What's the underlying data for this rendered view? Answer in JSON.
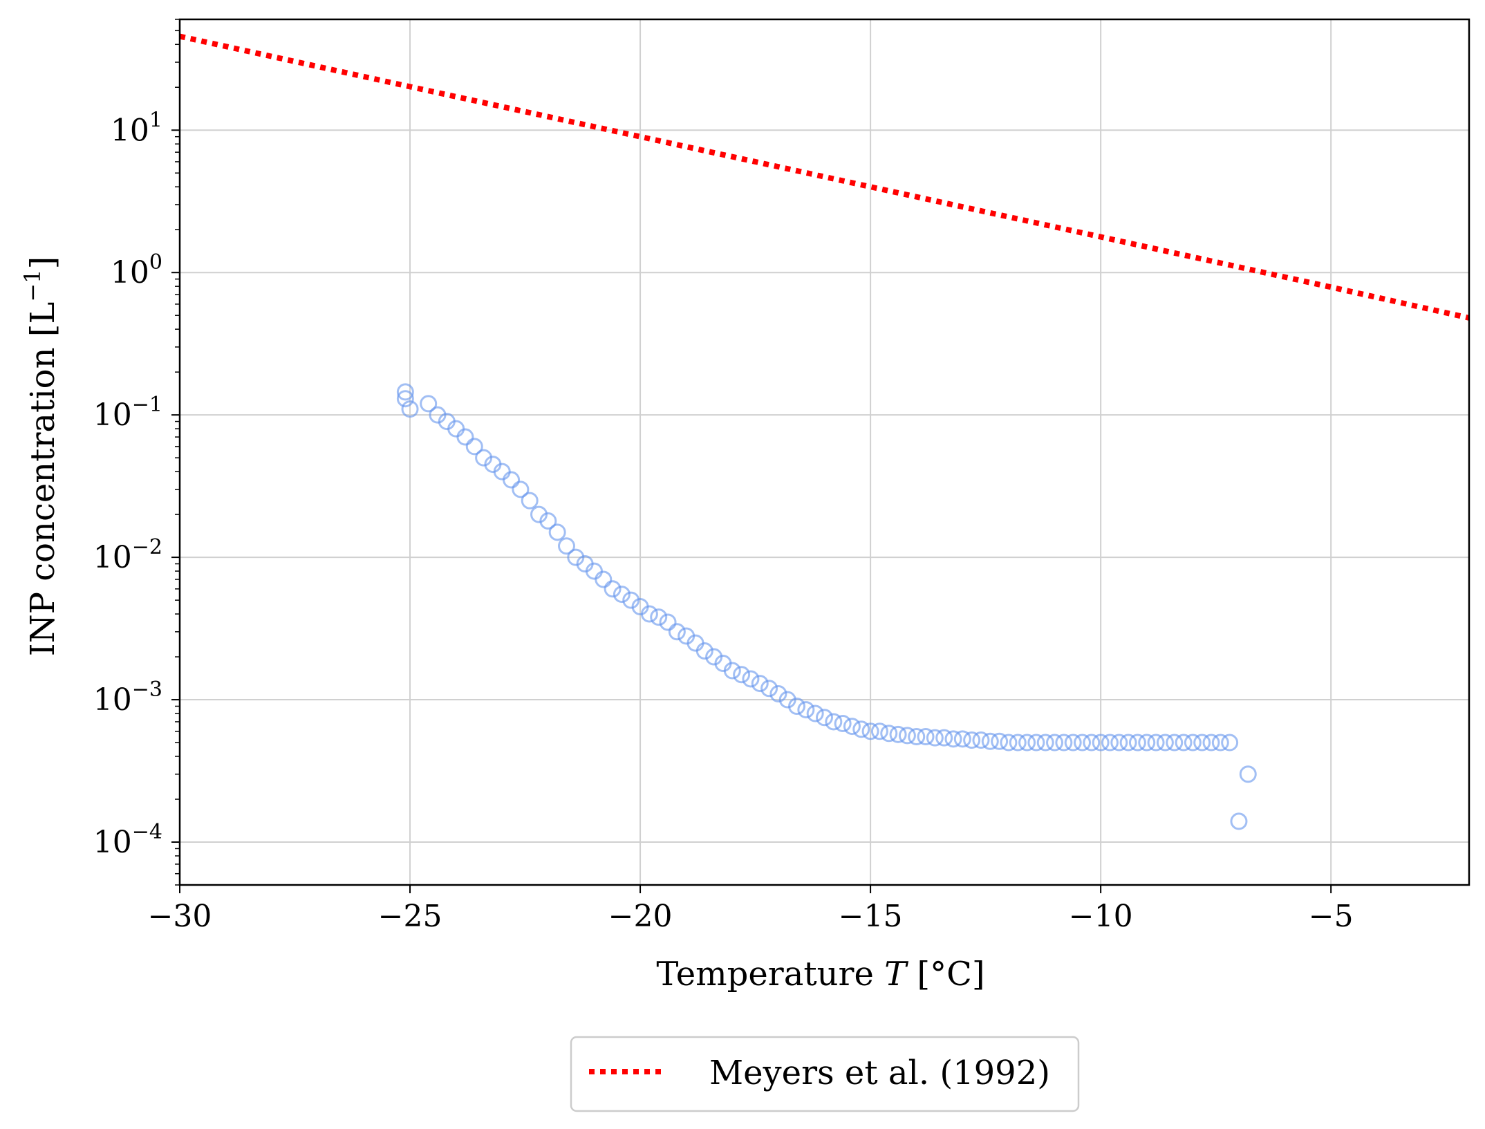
{
  "chart_data": {
    "type": "scatter",
    "title": "",
    "xlabel_prefix": "Temperature ",
    "xlabel_var": "T",
    "xlabel_suffix": " [°C]",
    "ylabel": "INP concentration [L",
    "ylabel_exp": "−1",
    "ylabel_close": "]",
    "xlim": [
      -30,
      -2
    ],
    "ylim": [
      5e-05,
      60
    ],
    "yscale": "log",
    "grid": true,
    "legend_placement": "below",
    "x_ticks": [
      {
        "value": -30,
        "label": "−30"
      },
      {
        "value": -25,
        "label": "−25"
      },
      {
        "value": -20,
        "label": "−20"
      },
      {
        "value": -15,
        "label": "−15"
      },
      {
        "value": -10,
        "label": "−10"
      },
      {
        "value": -5,
        "label": "−5"
      }
    ],
    "y_ticks": [
      {
        "value": 0.0001,
        "base": "10",
        "exp": "−4"
      },
      {
        "value": 0.001,
        "base": "10",
        "exp": "−3"
      },
      {
        "value": 0.01,
        "base": "10",
        "exp": "−2"
      },
      {
        "value": 0.1,
        "base": "10",
        "exp": "−1"
      },
      {
        "value": 1,
        "base": "10",
        "exp": "0"
      },
      {
        "value": 10,
        "base": "10",
        "exp": "1"
      }
    ],
    "series": [
      {
        "name": "Meyers et al. (1992)",
        "kind": "line",
        "style": "dotted",
        "color": "#ff0000",
        "x": [
          -30,
          -25,
          -20,
          -15,
          -10,
          -5,
          -2
        ],
        "y": [
          45.6,
          20.2,
          9.0,
          4.0,
          1.78,
          0.79,
          0.48
        ]
      },
      {
        "kind": "scatter",
        "marker": "hollow-circle",
        "color": "#6495ed",
        "x": [
          -25.1,
          -25.1,
          -25.0,
          -24.6,
          -24.4,
          -24.2,
          -24.0,
          -23.8,
          -23.6,
          -23.4,
          -23.2,
          -23.0,
          -22.8,
          -22.6,
          -22.4,
          -22.2,
          -22.0,
          -21.8,
          -21.6,
          -21.4,
          -21.2,
          -21.0,
          -20.8,
          -20.6,
          -20.4,
          -20.2,
          -20.0,
          -19.8,
          -19.6,
          -19.4,
          -19.2,
          -19.0,
          -18.8,
          -18.6,
          -18.4,
          -18.2,
          -18.0,
          -17.8,
          -17.6,
          -17.4,
          -17.2,
          -17.0,
          -16.8,
          -16.6,
          -16.4,
          -16.2,
          -16.0,
          -15.8,
          -15.6,
          -15.4,
          -15.2,
          -15.0,
          -14.8,
          -14.6,
          -14.4,
          -14.2,
          -14.0,
          -13.8,
          -13.6,
          -13.4,
          -13.2,
          -13.0,
          -12.8,
          -12.6,
          -12.4,
          -12.2,
          -12.0,
          -11.8,
          -11.6,
          -11.4,
          -11.2,
          -11.0,
          -10.8,
          -10.6,
          -10.4,
          -10.2,
          -10.0,
          -9.8,
          -9.6,
          -9.4,
          -9.2,
          -9.0,
          -8.8,
          -8.6,
          -8.4,
          -8.2,
          -8.0,
          -7.8,
          -7.6,
          -7.4,
          -7.2,
          -7.0,
          -6.8
        ],
        "y": [
          0.145,
          0.13,
          0.11,
          0.12,
          0.1,
          0.09,
          0.08,
          0.07,
          0.06,
          0.05,
          0.045,
          0.04,
          0.035,
          0.03,
          0.025,
          0.02,
          0.018,
          0.015,
          0.012,
          0.01,
          0.009,
          0.008,
          0.007,
          0.006,
          0.0055,
          0.005,
          0.0045,
          0.004,
          0.0038,
          0.0035,
          0.003,
          0.0028,
          0.0025,
          0.0022,
          0.002,
          0.0018,
          0.0016,
          0.0015,
          0.0014,
          0.0013,
          0.0012,
          0.0011,
          0.001,
          0.0009,
          0.00085,
          0.0008,
          0.00075,
          0.0007,
          0.00068,
          0.00065,
          0.00062,
          0.0006,
          0.0006,
          0.00058,
          0.00057,
          0.00056,
          0.00055,
          0.00055,
          0.00054,
          0.00054,
          0.00053,
          0.00053,
          0.00052,
          0.00052,
          0.00051,
          0.00051,
          0.0005,
          0.0005,
          0.0005,
          0.0005,
          0.0005,
          0.0005,
          0.0005,
          0.0005,
          0.0005,
          0.0005,
          0.0005,
          0.0005,
          0.0005,
          0.0005,
          0.0005,
          0.0005,
          0.0005,
          0.0005,
          0.0005,
          0.0005,
          0.0005,
          0.0005,
          0.0005,
          0.0005,
          0.0005,
          0.00014,
          0.0003
        ]
      }
    ]
  }
}
